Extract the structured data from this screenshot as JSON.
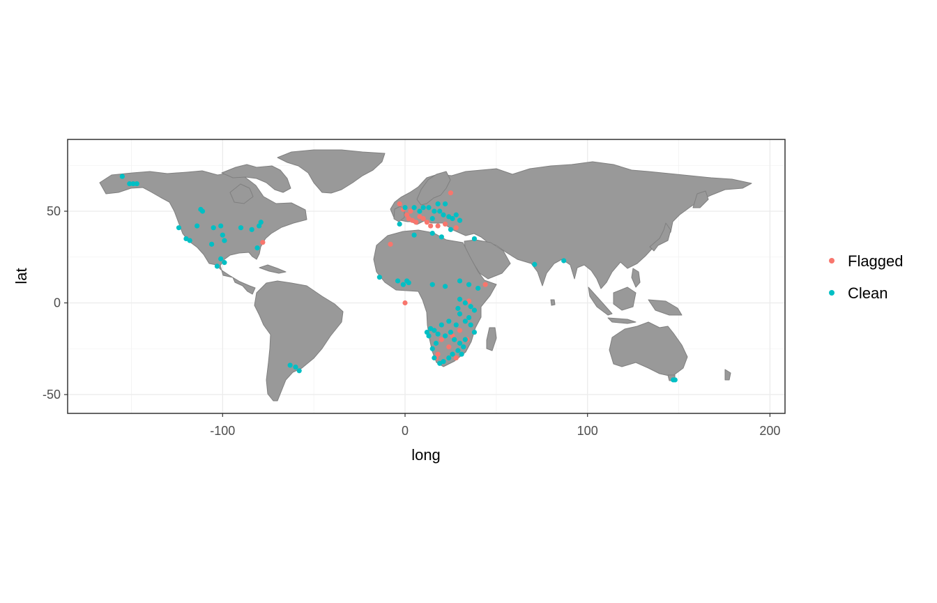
{
  "chart_data": {
    "type": "scatter",
    "title": "",
    "xlabel": "long",
    "ylabel": "lat",
    "xlim": [
      -190,
      210
    ],
    "ylim": [
      -60,
      90
    ],
    "x_ticks": [
      "-100",
      "0",
      "100",
      "200"
    ],
    "y_ticks": [
      "-50",
      "0",
      "50"
    ],
    "x_tick_values": [
      -100,
      0,
      100,
      200
    ],
    "y_tick_values": [
      -50,
      0,
      50
    ],
    "grid": true,
    "legend_position": "right",
    "basemap": "world country outlines",
    "land_color": "#999999",
    "border_color": "#7f7f7f",
    "series": [
      {
        "name": "Flagged",
        "color": "#F8766D",
        "points": [
          [
            -78,
            33
          ],
          [
            0,
            0
          ],
          [
            -8,
            32
          ],
          [
            -3,
            54
          ],
          [
            1,
            48
          ],
          [
            2,
            46
          ],
          [
            4,
            45
          ],
          [
            6,
            44
          ],
          [
            8,
            47
          ],
          [
            10,
            46
          ],
          [
            12,
            44
          ],
          [
            14,
            42
          ],
          [
            18,
            42
          ],
          [
            22,
            43
          ],
          [
            25,
            60
          ],
          [
            28,
            41
          ],
          [
            3,
            50
          ],
          [
            -1,
            51
          ],
          [
            44,
            10
          ],
          [
            18,
            -28
          ],
          [
            24,
            -24
          ],
          [
            26,
            -18
          ],
          [
            30,
            -15
          ],
          [
            34,
            -20
          ],
          [
            20,
            -20
          ],
          [
            28,
            -30
          ],
          [
            17,
            -30
          ],
          [
            35,
            1
          ]
        ]
      },
      {
        "name": "Clean",
        "color": "#00BFC4",
        "points": [
          [
            -155,
            69
          ],
          [
            -149,
            65
          ],
          [
            -151,
            65
          ],
          [
            -147,
            65
          ],
          [
            -111,
            50
          ],
          [
            -112,
            51
          ],
          [
            -124,
            41
          ],
          [
            -120,
            35
          ],
          [
            -118,
            34
          ],
          [
            -114,
            42
          ],
          [
            -105,
            41
          ],
          [
            -101,
            42
          ],
          [
            -100,
            37
          ],
          [
            -99,
            34
          ],
          [
            -106,
            32
          ],
          [
            -101,
            24
          ],
          [
            -103,
            20
          ],
          [
            -99,
            22
          ],
          [
            -90,
            41
          ],
          [
            -84,
            40
          ],
          [
            -80,
            42
          ],
          [
            -79,
            44
          ],
          [
            -81,
            30
          ],
          [
            -60,
            -35
          ],
          [
            -58,
            -37
          ],
          [
            -63,
            -34
          ],
          [
            -14,
            14
          ],
          [
            -4,
            12
          ],
          [
            -1,
            10
          ],
          [
            1,
            12
          ],
          [
            2,
            11
          ],
          [
            -3,
            43
          ],
          [
            0,
            52
          ],
          [
            5,
            52
          ],
          [
            8,
            50
          ],
          [
            10,
            52
          ],
          [
            13,
            52
          ],
          [
            16,
            50
          ],
          [
            19,
            50
          ],
          [
            21,
            48
          ],
          [
            24,
            47
          ],
          [
            26,
            46
          ],
          [
            28,
            48
          ],
          [
            30,
            45
          ],
          [
            18,
            54
          ],
          [
            22,
            54
          ],
          [
            15,
            46
          ],
          [
            5,
            37
          ],
          [
            15,
            38
          ],
          [
            20,
            36
          ],
          [
            25,
            40
          ],
          [
            38,
            35
          ],
          [
            15,
            10
          ],
          [
            22,
            9
          ],
          [
            30,
            12
          ],
          [
            35,
            10
          ],
          [
            40,
            8
          ],
          [
            30,
            2
          ],
          [
            33,
            0
          ],
          [
            36,
            -2
          ],
          [
            38,
            -4
          ],
          [
            29,
            -3
          ],
          [
            30,
            -6
          ],
          [
            35,
            -8
          ],
          [
            33,
            -10
          ],
          [
            28,
            -12
          ],
          [
            24,
            -10
          ],
          [
            20,
            -12
          ],
          [
            16,
            -15
          ],
          [
            18,
            -17
          ],
          [
            22,
            -18
          ],
          [
            25,
            -16
          ],
          [
            27,
            -20
          ],
          [
            30,
            -22
          ],
          [
            32,
            -24
          ],
          [
            29,
            -26
          ],
          [
            26,
            -28
          ],
          [
            24,
            -30
          ],
          [
            21,
            -32
          ],
          [
            19,
            -33
          ],
          [
            16,
            -30
          ],
          [
            15,
            -25
          ],
          [
            17,
            -22
          ],
          [
            13,
            -18
          ],
          [
            14,
            -14
          ],
          [
            12,
            -16
          ],
          [
            31,
            -28
          ],
          [
            33,
            -20
          ],
          [
            36,
            -12
          ],
          [
            38,
            -16
          ],
          [
            71,
            21
          ],
          [
            87,
            23
          ],
          [
            147,
            -42
          ],
          [
            148,
            -42
          ]
        ]
      }
    ]
  }
}
